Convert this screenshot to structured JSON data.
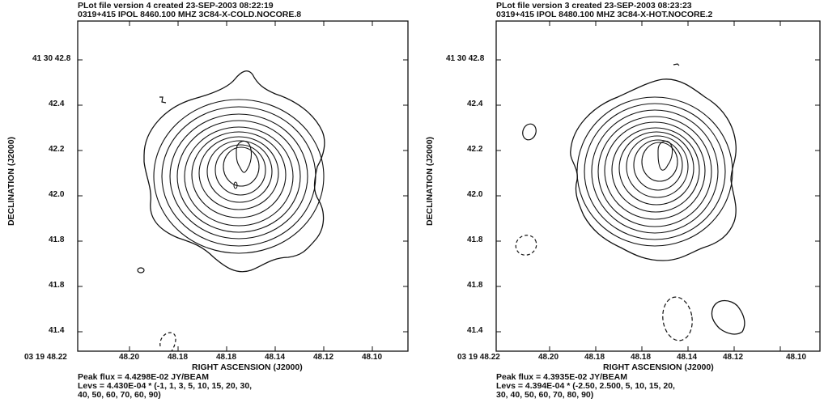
{
  "panels": [
    {
      "header_line1": "PLot file version 4  created 23-SEP-2003 08:22:19",
      "header_line2": "0319+415  IPOL  8460.100 MHZ  3C84-X-COLD.NOCORE.8",
      "ylabel": "DECLINATION (J2000)",
      "xlabel": "RIGHT ASCENSION (J2000)",
      "yticks": [
        "41 30 42.8",
        "42.4",
        "42.2",
        "42.0",
        "41.8",
        "41.8",
        "41.4"
      ],
      "xticks": [
        "03 19 48.22",
        "48.20",
        "48.18",
        "48.18",
        "48.14",
        "48.12",
        "48.10"
      ],
      "peak_flux": "Peak flux = 4.4298E-02 JY/BEAM",
      "levs_line1": "Levs = 4.430E-04 * (-1, 1, 3, 5, 10, 15, 20, 30,",
      "levs_line2": "40, 50, 60, 70, 60, 90)"
    },
    {
      "header_line1": "PLot file version 3  created 23-SEP-2003 08:23:23",
      "header_line2": "0319+415  IPOL  8480.100 MHZ  3C84-X-HOT.NOCORE.2",
      "ylabel": "DECLINATION (J2000)",
      "xlabel": "RIGHT ASCENSION (J2000)",
      "yticks": [
        "41 30 42.8",
        "42.4",
        "42.2",
        "42.0",
        "41.8",
        "41.8",
        "41.4"
      ],
      "xticks": [
        "03 19 48.22",
        "48.20",
        "48.18",
        "48.18",
        "48.14",
        "48.12",
        "48.10"
      ],
      "peak_flux": "Peak flux = 4.3935E-02 JY/BEAM",
      "levs_line1": "Levs = 4.394E-04 * (-2.50, 2.500, 5, 10, 15, 20,",
      "levs_line2": "30, 40, 50, 60, 70, 80, 90)"
    }
  ]
}
